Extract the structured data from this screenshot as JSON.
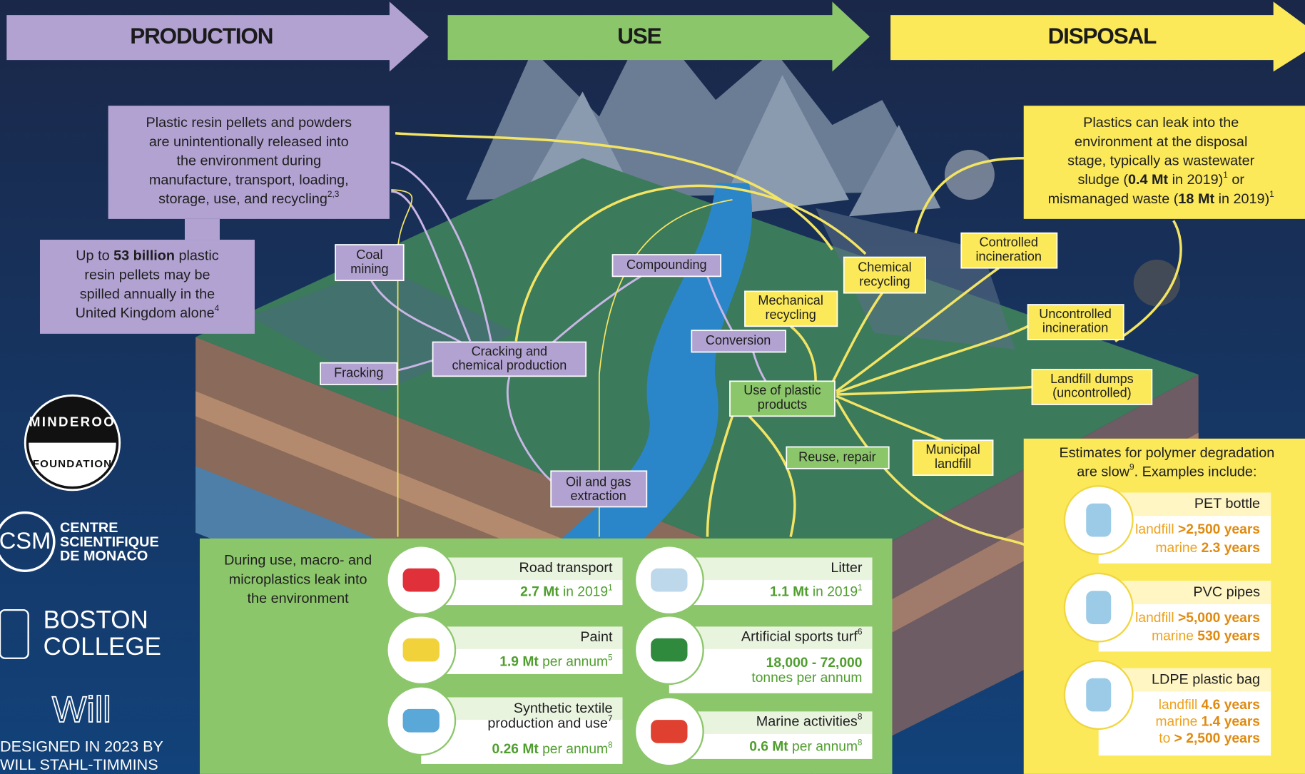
{
  "header": {
    "production": "PRODUCTION",
    "use": "USE",
    "disposal": "DISPOSAL"
  },
  "production_notes": {
    "pellets": [
      "Plastic resin pellets and powders",
      "are unintentionally released into",
      "the environment during",
      "manufacture, transport, loading,",
      [
        "storage, use, and recycling",
        {
          "sup": "2,3"
        }
      ]
    ],
    "uk_spill": [
      [
        "Up to ",
        {
          "b": "53 billion"
        },
        " plastic"
      ],
      "resin pellets may be",
      "spilled annually in the",
      [
        "United Kingdom alone",
        {
          "sup": "4"
        }
      ]
    ]
  },
  "stages": {
    "coal_mining": [
      "Coal",
      "mining"
    ],
    "fracking": [
      "Fracking"
    ],
    "cracking": [
      "Cracking and",
      "chemical production"
    ],
    "compounding": [
      "Compounding"
    ],
    "conversion": [
      "Conversion"
    ],
    "oil_gas": [
      "Oil and gas",
      "extraction"
    ]
  },
  "use_stages": {
    "use_of_products": [
      "Use of plastic",
      "products"
    ],
    "reuse_repair": [
      "Reuse, repair"
    ]
  },
  "disposal_routes": {
    "mechanical_recycling": [
      "Mechanical",
      "recycling"
    ],
    "chemical_recycling": [
      "Chemical",
      "recycling"
    ],
    "controlled_incineration": [
      "Controlled",
      "incineration"
    ],
    "uncontrolled_incineration": [
      "Uncontrolled",
      "incineration"
    ],
    "landfill_dumps": [
      "Landfill dumps",
      "(uncontrolled)"
    ],
    "municipal_landfill": [
      "Municipal",
      "landfill"
    ]
  },
  "disposal_note": [
    "Plastics can leak into the",
    "environment at the disposal",
    "stage, typically as wastewater",
    [
      "sludge (",
      {
        "b": "0.4 Mt"
      },
      " in 2019)",
      {
        "sup": "1"
      },
      " or"
    ],
    [
      "mismanaged waste (",
      {
        "b": "18 Mt"
      },
      " in 2019)",
      {
        "sup": "1"
      }
    ]
  ],
  "degradation": {
    "intro": [
      "Estimates for polymer degradation",
      [
        "are slow",
        {
          "sup": "9"
        },
        ". Examples include:"
      ]
    ],
    "items": [
      {
        "name": "PET bottle",
        "lines": [
          [
            "landfill ",
            {
              "b": ">2,500 years"
            }
          ],
          [
            "marine ",
            {
              "b": "2.3 years"
            }
          ]
        ]
      },
      {
        "name": "PVC pipes",
        "lines": [
          [
            "landfill ",
            {
              "b": ">5,000 years"
            }
          ],
          [
            "marine ",
            {
              "b": "530 years"
            }
          ]
        ]
      },
      {
        "name": "LDPE plastic bag",
        "lines": [
          [
            "landfill ",
            {
              "b": "4.6 years"
            }
          ],
          [
            "marine ",
            {
              "b": "1.4 years"
            }
          ],
          [
            "to ",
            {
              "b": "> 2,500 years"
            }
          ]
        ]
      }
    ]
  },
  "use_leaks": {
    "intro": [
      "During use, macro- and",
      "microplastics leak into",
      "the environment"
    ],
    "items": [
      {
        "name": [
          "Road transport"
        ],
        "amount": [
          [
            {
              "b": "2.7 Mt"
            },
            " in 2019",
            {
              "sup": "1"
            }
          ]
        ]
      },
      {
        "name": [
          "Paint"
        ],
        "amount": [
          [
            {
              "b": "1.9 Mt"
            },
            " per annum",
            {
              "sup": "5"
            }
          ]
        ]
      },
      {
        "name": [
          "Synthetic textile",
          [
            "production and use",
            {
              "sup": "7"
            }
          ]
        ],
        "amount": [
          [
            {
              "b": "0.26 Mt"
            },
            " per annum",
            {
              "sup": "8"
            }
          ]
        ]
      },
      {
        "name": [
          "Litter"
        ],
        "amount": [
          [
            {
              "b": "1.1 Mt"
            },
            " in 2019",
            {
              "sup": "1"
            }
          ]
        ]
      },
      {
        "name": [
          [
            "Artificial sports turf",
            {
              "sup": "6"
            }
          ]
        ],
        "amount": [
          [
            {
              "b": "18,000 - 72,000"
            }
          ],
          "tonnes per annum"
        ]
      },
      {
        "name": [
          [
            "Marine activities",
            {
              "sup": "8"
            }
          ]
        ],
        "amount": [
          [
            {
              "b": "0.6 Mt"
            },
            " per annum",
            {
              "sup": "8"
            }
          ]
        ]
      }
    ]
  },
  "logos": {
    "minderoo_top": "MINDEROO",
    "minderoo_bottom": "FOUNDATION",
    "csm": "CSM",
    "csm_name": [
      "CENTRE",
      "SCIENTIFIQUE",
      "DE MONACO"
    ],
    "boston": [
      "BOSTON",
      "COLLEGE"
    ],
    "will": "Will",
    "credit": [
      "DESIGNED IN 2023 BY",
      "WILL STAHL-TIMMINS"
    ]
  }
}
